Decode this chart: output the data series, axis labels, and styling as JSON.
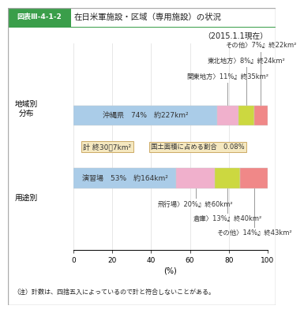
{
  "fig_label": "図表Ⅲ-4-1-2",
  "title": "在日米軍施設・区域（専用施設）の状況",
  "subtitle": "（2015.1.1現在）",
  "note": "（注）計数は、四捨五入によっているので計と符合しないことがある。",
  "bar1_ylabel": "地域別\n分布",
  "bar2_ylabel": "用途別",
  "bar1_segments": [
    74,
    11,
    8,
    7
  ],
  "bar2_segments": [
    53,
    20,
    13,
    14
  ],
  "colors": [
    "#aacce8",
    "#f0b0cc",
    "#ccd840",
    "#f08888"
  ],
  "bar1_inside_label": "沖縄県〉74%』終22〇7km²",
  "bar1_outside_labels": [
    "関東地方〉11%』終35km²",
    "東北地方〉8%』終24km²",
    "その他〉7%』終22km²"
  ],
  "bar2_inside_label": "演習場〉53%』終164km²",
  "bar2_outside_labels": [
    "飛行場〉20%』終60km²",
    "倉庫〉13%』終40km²",
    "その他〉14%』終43km²"
  ],
  "summary1": "計 終30\u00077km²",
  "summary2": "国土面積に占める割合　0.08%",
  "title_box_color": "#3a9e4a",
  "title_text_color": "#ffffff",
  "summary_box_color": "#f5e8c0",
  "summary_box_edge": "#ccaa66",
  "xlabel": "(%)",
  "line_color": "#999999",
  "text_color": "#333333",
  "grid_color": "#dddddd",
  "border_color": "#aaaaaa"
}
